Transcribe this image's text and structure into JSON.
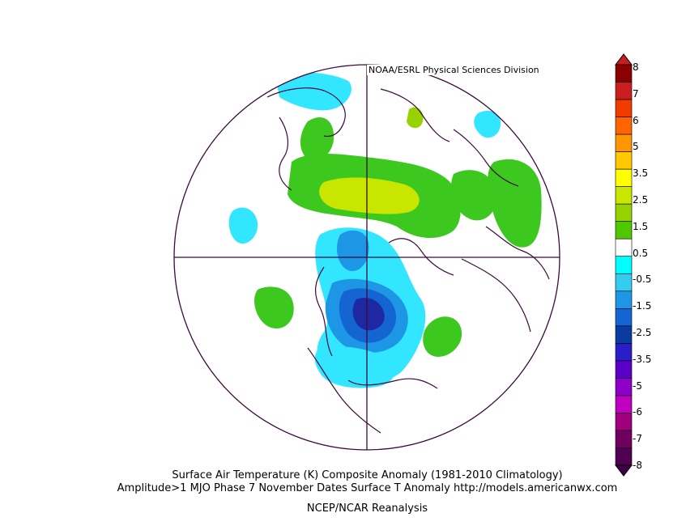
{
  "credit": "NOAA/ESRL Physical Sciences Division",
  "captions": {
    "line1": "Surface Air Temperature (K) Composite Anomaly (1981-2010 Climatology)",
    "line2": "Amplitude>1 MJO Phase 7 November Dates Surface T Anomaly http://models.americanwx.com",
    "line3": "NCEP/NCAR Reanalysis"
  },
  "legend": {
    "labels": [
      "8",
      "7",
      "6",
      "5",
      "3.5",
      "2.5",
      "1.5",
      "0.5",
      "-0.5",
      "-1.5",
      "-2.5",
      "-3.5",
      "-5",
      "-6",
      "-7",
      "-8"
    ],
    "colors": [
      "#8b0000",
      "#c81e1e",
      "#f03c00",
      "#ff6400",
      "#ff9600",
      "#ffc800",
      "#ffff00",
      "#c8e600",
      "#96d200",
      "#50c800",
      "#ffffff",
      "#00ffff",
      "#33ccee",
      "#1e96e6",
      "#1464d2",
      "#0a3ca0",
      "#2a1ec8",
      "#5a00c8",
      "#8c00c8",
      "#c000c0",
      "#a00080",
      "#700060",
      "#500050"
    ],
    "top_color": "#c81e1e",
    "bottom_color": "#3c0046"
  },
  "map": {
    "projection": "north polar stereographic",
    "colors": {
      "border": "#3c0a3c",
      "green": "#3cc81e",
      "lightgreen": "#96d200",
      "yellow": "#c8e600",
      "cyan": "#33e6ff",
      "lightblue": "#1e96e6",
      "blue": "#1464d2",
      "darkblue": "#1e28a0",
      "deepblue": "#282896"
    }
  }
}
